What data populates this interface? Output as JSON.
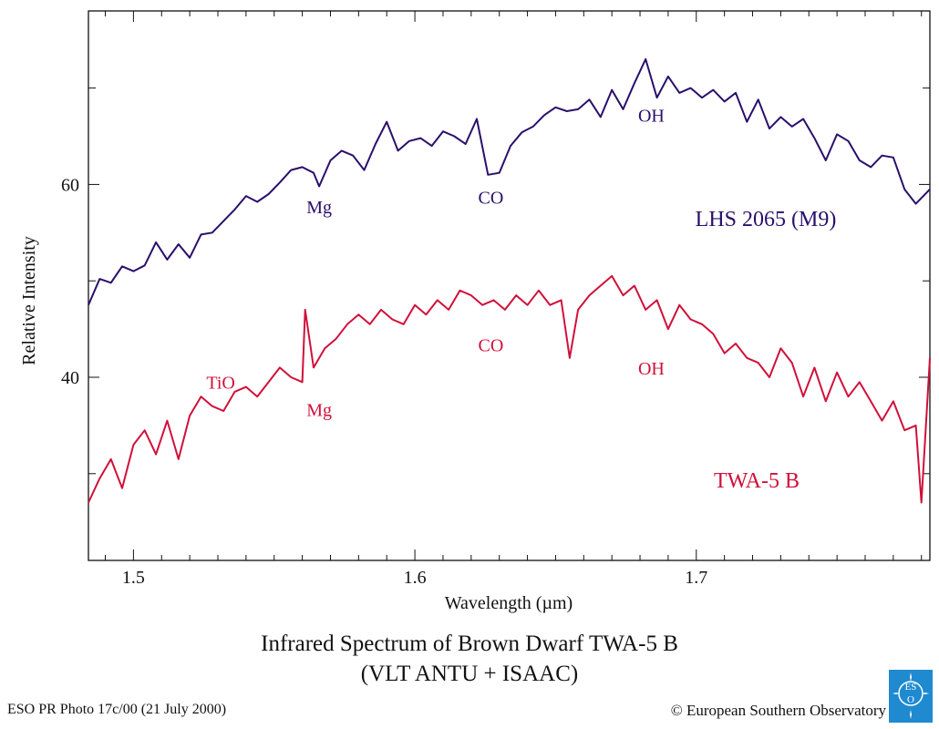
{
  "chart_data": {
    "type": "line",
    "title": "Infrared Spectrum of Brown Dwarf TWA-5 B",
    "subtitle": "(VLT ANTU + ISAAC)",
    "xlabel": "Wavelength (µm)",
    "ylabel": "Relative Intensity",
    "xlim": [
      1.484,
      1.783
    ],
    "ylim": [
      21,
      78
    ],
    "x_ticks": [
      1.5,
      1.6,
      1.7
    ],
    "x_tick_labels": [
      "1.5",
      "1.6",
      "1.7"
    ],
    "y_ticks": [
      60,
      40
    ],
    "y_tick_labels": [
      "60",
      "40"
    ],
    "grid": false,
    "colors": {
      "upper": "#2a0f6b",
      "lower": "#d0103a"
    },
    "series": [
      {
        "name": "LHS 2065 (M9)",
        "color": "#2a0f6b",
        "x": [
          1.484,
          1.488,
          1.492,
          1.496,
          1.5,
          1.504,
          1.508,
          1.512,
          1.516,
          1.52,
          1.524,
          1.528,
          1.532,
          1.536,
          1.54,
          1.544,
          1.548,
          1.552,
          1.556,
          1.56,
          1.564,
          1.566,
          1.57,
          1.574,
          1.578,
          1.582,
          1.586,
          1.59,
          1.594,
          1.598,
          1.602,
          1.606,
          1.61,
          1.614,
          1.618,
          1.622,
          1.626,
          1.63,
          1.634,
          1.638,
          1.642,
          1.646,
          1.65,
          1.654,
          1.658,
          1.662,
          1.666,
          1.67,
          1.674,
          1.678,
          1.682,
          1.686,
          1.69,
          1.694,
          1.698,
          1.702,
          1.706,
          1.71,
          1.714,
          1.718,
          1.722,
          1.726,
          1.73,
          1.734,
          1.738,
          1.742,
          1.746,
          1.75,
          1.754,
          1.758,
          1.762,
          1.766,
          1.77,
          1.774,
          1.778,
          1.783
        ],
        "values": [
          47.5,
          50.2,
          49.8,
          51.5,
          51.0,
          51.6,
          54.0,
          52.2,
          53.8,
          52.4,
          54.8,
          55.0,
          56.2,
          57.4,
          58.8,
          58.2,
          59.0,
          60.2,
          61.5,
          61.8,
          61.2,
          59.8,
          62.5,
          63.5,
          63.0,
          61.5,
          64.2,
          66.5,
          63.5,
          64.5,
          64.8,
          64.0,
          65.5,
          65.0,
          64.2,
          66.8,
          61.0,
          61.2,
          64.0,
          65.4,
          66.0,
          67.2,
          68.0,
          67.6,
          67.8,
          68.8,
          67.0,
          69.8,
          67.8,
          70.5,
          73.0,
          69.0,
          71.2,
          69.5,
          70.0,
          69.0,
          69.8,
          68.6,
          69.5,
          66.5,
          68.8,
          65.8,
          67.0,
          66.0,
          66.8,
          64.8,
          62.5,
          65.2,
          64.5,
          62.5,
          61.8,
          63.0,
          62.8,
          59.5,
          58.0,
          59.5
        ],
        "annotations": [
          {
            "text": "Mg",
            "x": 1.566,
            "y": 57.0
          },
          {
            "text": "CO",
            "x": 1.627,
            "y": 58.0
          },
          {
            "text": "OH",
            "x": 1.684,
            "y": 66.5
          }
        ]
      },
      {
        "name": "TWA-5 B",
        "color": "#d0103a",
        "x": [
          1.484,
          1.488,
          1.492,
          1.496,
          1.5,
          1.504,
          1.508,
          1.512,
          1.516,
          1.52,
          1.524,
          1.528,
          1.532,
          1.536,
          1.54,
          1.544,
          1.548,
          1.552,
          1.556,
          1.56,
          1.561,
          1.564,
          1.568,
          1.572,
          1.576,
          1.58,
          1.584,
          1.588,
          1.592,
          1.596,
          1.6,
          1.604,
          1.608,
          1.612,
          1.616,
          1.62,
          1.624,
          1.628,
          1.632,
          1.636,
          1.64,
          1.644,
          1.648,
          1.652,
          1.655,
          1.658,
          1.662,
          1.666,
          1.67,
          1.674,
          1.678,
          1.682,
          1.686,
          1.69,
          1.694,
          1.698,
          1.702,
          1.706,
          1.71,
          1.714,
          1.718,
          1.722,
          1.726,
          1.73,
          1.734,
          1.738,
          1.742,
          1.746,
          1.75,
          1.754,
          1.758,
          1.762,
          1.766,
          1.77,
          1.774,
          1.778,
          1.78,
          1.783
        ],
        "values": [
          27.0,
          29.5,
          31.5,
          28.5,
          33.0,
          34.5,
          32.0,
          35.5,
          31.5,
          36.0,
          38.0,
          37.0,
          36.5,
          38.5,
          39.0,
          38.0,
          39.5,
          41.0,
          40.0,
          39.5,
          47.0,
          41.0,
          43.0,
          44.0,
          45.5,
          46.5,
          45.5,
          47.0,
          46.0,
          45.5,
          47.5,
          46.5,
          48.0,
          47.0,
          49.0,
          48.5,
          47.5,
          48.0,
          47.0,
          48.5,
          47.5,
          49.0,
          47.5,
          48.0,
          42.0,
          47.0,
          48.5,
          49.5,
          50.5,
          48.5,
          49.5,
          47.0,
          48.0,
          45.0,
          47.5,
          46.0,
          45.5,
          44.5,
          42.5,
          43.5,
          42.0,
          41.5,
          40.0,
          43.0,
          41.5,
          38.0,
          41.0,
          37.5,
          40.5,
          38.0,
          39.5,
          37.5,
          35.5,
          37.5,
          34.5,
          35.0,
          27.0,
          42.0
        ],
        "annotations": [
          {
            "text": "TiO",
            "x": 1.531,
            "y": 38.8
          },
          {
            "text": "Mg",
            "x": 1.566,
            "y": 36.0
          },
          {
            "text": "CO",
            "x": 1.627,
            "y": 42.7
          },
          {
            "text": "OH",
            "x": 1.684,
            "y": 40.3
          }
        ]
      }
    ]
  },
  "caption": {
    "line1": "Infrared Spectrum of Brown Dwarf TWA-5 B",
    "line2": "(VLT ANTU + ISAAC)"
  },
  "footer": {
    "left": "ESO PR Photo 17c/00 (21 July 2000)",
    "right": "© European Southern Observatory",
    "logo_text": "ESO"
  }
}
